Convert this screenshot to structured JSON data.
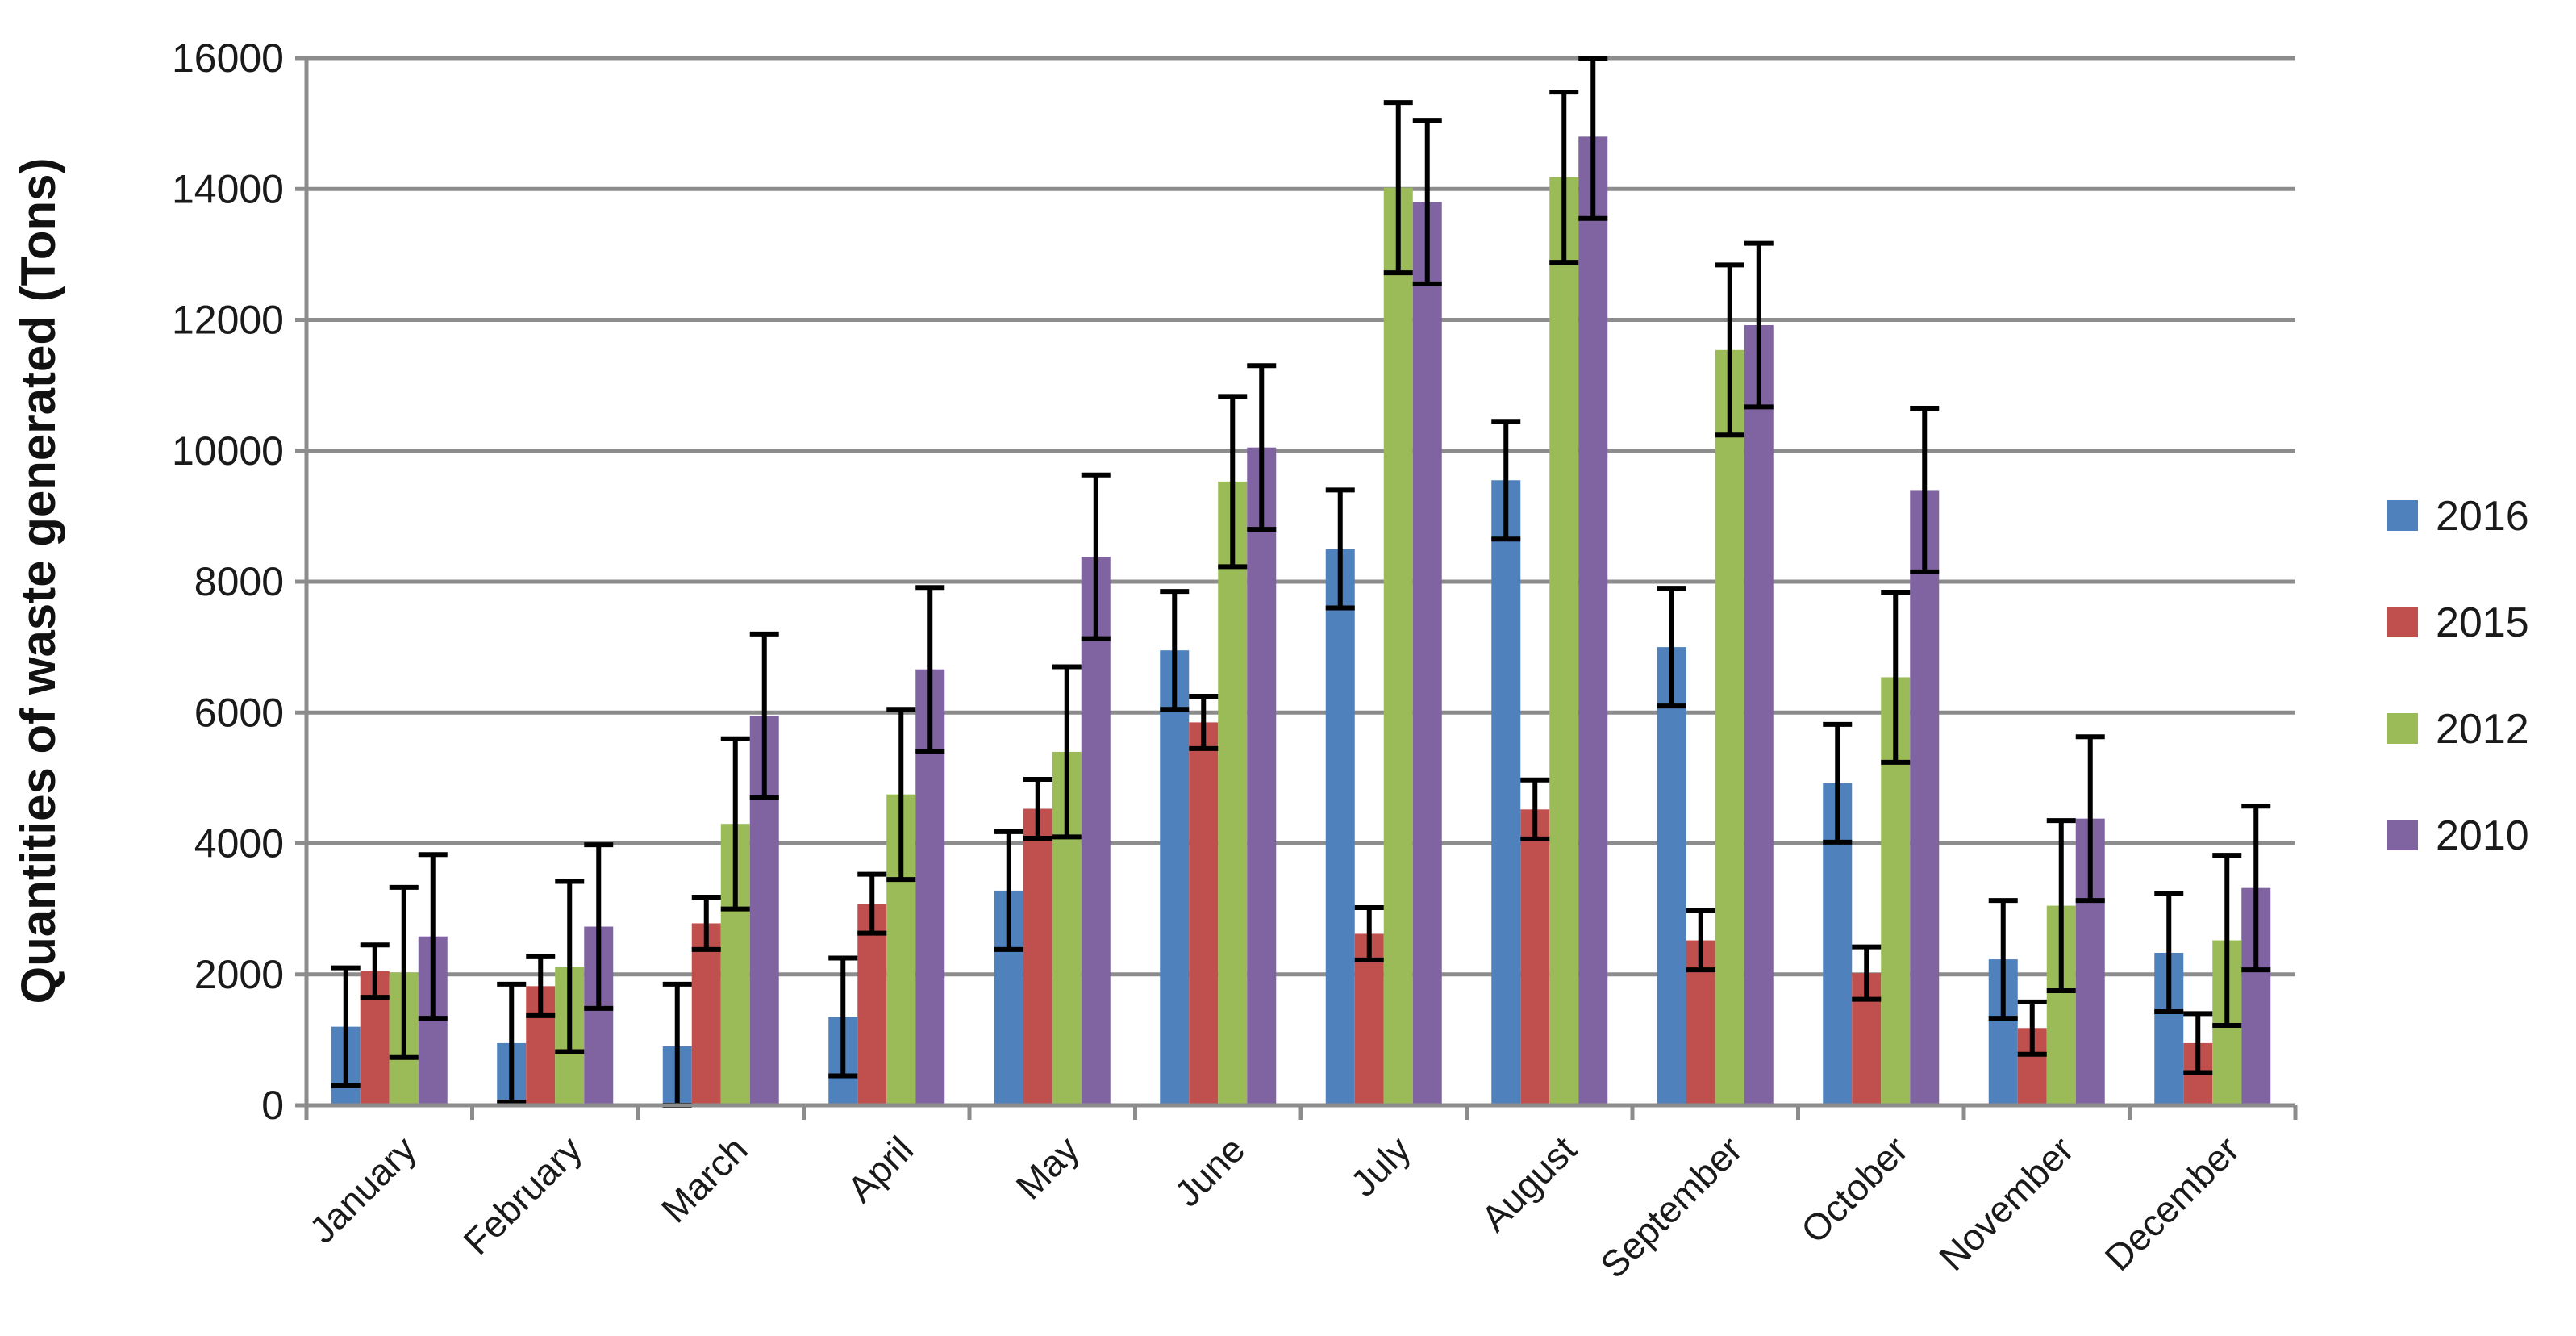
{
  "chart_data": {
    "type": "bar",
    "title": "",
    "xlabel": "",
    "ylabel": "Quantities of waste generated (Tons)",
    "ylim": [
      0,
      16000
    ],
    "yticks": [
      0,
      2000,
      4000,
      6000,
      8000,
      10000,
      12000,
      14000,
      16000
    ],
    "ytick_labels": [
      "0",
      "2000",
      "4000",
      "6000",
      "8000",
      "10000",
      "12000",
      "14000",
      "16000"
    ],
    "grid": true,
    "legend_position": "right",
    "categories": [
      "January",
      "February",
      "March",
      "April",
      "May",
      "June",
      "July",
      "August",
      "September",
      "October",
      "November",
      "December"
    ],
    "series": [
      {
        "name": "2016",
        "color": "#4F81BD",
        "values": [
          1200,
          950,
          900,
          1350,
          3280,
          6950,
          8500,
          9550,
          7000,
          4920,
          2230,
          2330
        ],
        "errors": [
          900,
          900,
          950,
          900,
          900,
          900,
          900,
          900,
          900,
          900,
          900,
          900
        ]
      },
      {
        "name": "2015",
        "color": "#C0504D",
        "values": [
          2050,
          1820,
          2780,
          3080,
          4530,
          5850,
          2620,
          4520,
          2520,
          2020,
          1180,
          950
        ],
        "errors": [
          400,
          450,
          400,
          450,
          450,
          400,
          400,
          450,
          450,
          400,
          400,
          450
        ]
      },
      {
        "name": "2012",
        "color": "#9BBB59",
        "values": [
          2030,
          2120,
          4300,
          4750,
          5400,
          9530,
          14020,
          14180,
          11540,
          6540,
          3050,
          2520
        ],
        "errors": [
          1300,
          1300,
          1300,
          1300,
          1300,
          1300,
          1300,
          1300,
          1300,
          1300,
          1300,
          1300
        ]
      },
      {
        "name": "2010",
        "color": "#8064A2",
        "values": [
          2580,
          2730,
          5950,
          6660,
          8380,
          10050,
          13800,
          14800,
          11920,
          9400,
          4380,
          3320
        ],
        "errors": [
          1250,
          1250,
          1250,
          1250,
          1250,
          1250,
          1250,
          1250,
          1250,
          1250,
          1250,
          1250
        ]
      }
    ]
  }
}
